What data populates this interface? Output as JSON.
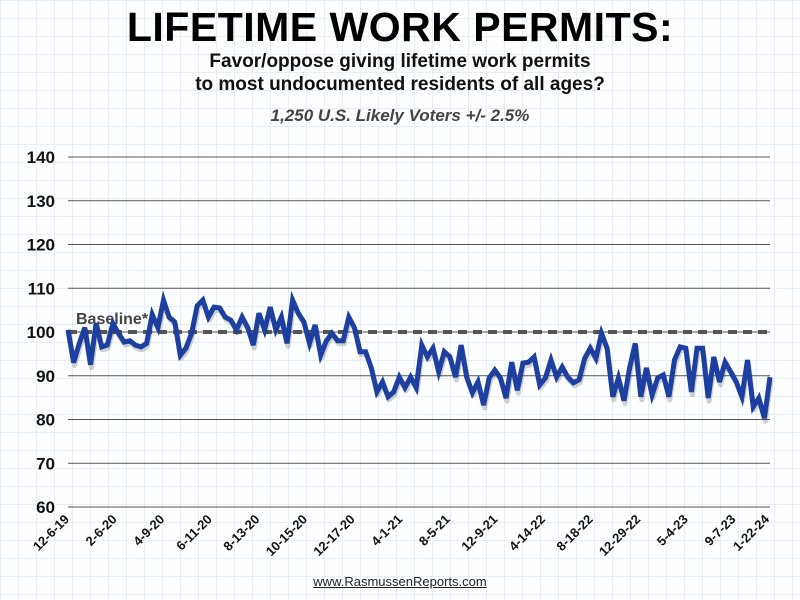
{
  "chart_data": {
    "type": "line",
    "title": "LIFETIME WORK PERMITS:",
    "subtitle": [
      "Favor/oppose giving lifetime work permits",
      "to most undocumented residents of all ages?"
    ],
    "sample_note": "1,250 U.S. Likely Voters +/- 2.5%",
    "xlabel": "",
    "ylabel": "",
    "ylim": [
      60,
      140
    ],
    "yticks": [
      60,
      70,
      80,
      90,
      100,
      110,
      120,
      130,
      140
    ],
    "xticks": [
      "12-6-19",
      "2-6-20",
      "4-9-20",
      "6-11-20",
      "8-13-20",
      "10-15-20",
      "12-17-20",
      "4-1-21",
      "8-5-21",
      "12-9-21",
      "4-14-22",
      "8-18-22",
      "12-29-22",
      "5-4-23",
      "9-7-23",
      "1-22-24"
    ],
    "grid": true,
    "baseline": {
      "label": "Baseline*",
      "value": 100
    },
    "series": [
      {
        "color": "#1c3fa0",
        "values": [
          100.5,
          93,
          97.3,
          101,
          92.5,
          102,
          96.6,
          97,
          102,
          99.7,
          97.7,
          98,
          97,
          96.6,
          97.4,
          104,
          101,
          107.3,
          103.4,
          102.3,
          94.7,
          96.3,
          99.7,
          106,
          107.3,
          103.4,
          105.7,
          105.5,
          103.4,
          102.7,
          100.5,
          103.4,
          101,
          97,
          104.3,
          100.5,
          105.7,
          100.5,
          103.4,
          97.4,
          107.3,
          104.3,
          102.3,
          97.4,
          101.6,
          94.7,
          98,
          99.7,
          98,
          98,
          103.4,
          101,
          95.5,
          95.5,
          91.8,
          86.3,
          88.6,
          85.2,
          86.3,
          89.7,
          87.3,
          89.7,
          87.3,
          97,
          94.3,
          96.3,
          90.9,
          95.5,
          94.3,
          89.7,
          97,
          89.7,
          86.1,
          88.6,
          83.3,
          89.5,
          91.3,
          89.5,
          84.9,
          93.1,
          86.7,
          92.9,
          93.1,
          94.3,
          87.9,
          89.5,
          93.6,
          89.7,
          92,
          89.7,
          88.4,
          89.1,
          94,
          96.3,
          94,
          99.7,
          96.3,
          85.2,
          89.5,
          84.3,
          91.8,
          97.4,
          85.2,
          91.8,
          85.6,
          89.5,
          90.2,
          85.2,
          93.6,
          96.6,
          96.3,
          86.3,
          96.3,
          96.3,
          84.9,
          94.3,
          88.6,
          93.1,
          90.9,
          88.6,
          85.2,
          93.6,
          82.9,
          84.9,
          80.3,
          89.7
        ]
      }
    ]
  },
  "footer": "www.RasmussenReports.com"
}
